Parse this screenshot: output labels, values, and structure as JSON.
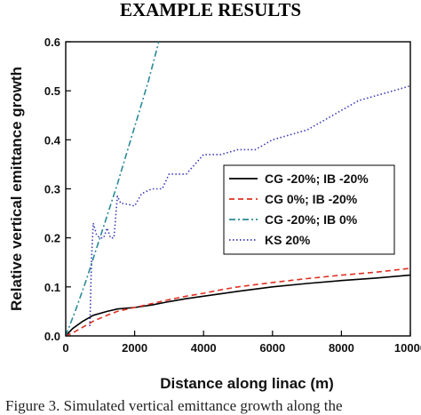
{
  "heading": "EXAMPLE RESULTS",
  "caption": "Figure 3. Simulated vertical emittance growth along the",
  "chart_data": {
    "type": "line",
    "title": "",
    "xlabel": "Distance along linac (m)",
    "ylabel": "Relative vertical emittance growth",
    "xlim": [
      0,
      10000
    ],
    "ylim": [
      0,
      0.6
    ],
    "xticks": [
      0,
      2000,
      4000,
      6000,
      8000,
      10000
    ],
    "yticks": [
      0.0,
      0.1,
      0.2,
      0.3,
      0.4,
      0.5,
      0.6
    ],
    "xtick_labels": [
      "0",
      "2000",
      "4000",
      "6000",
      "8000",
      "10000"
    ],
    "ytick_labels": [
      "0.0",
      "0.1",
      "0.2",
      "0.3",
      "0.4",
      "0.5",
      "0.6"
    ],
    "grid": false,
    "legend_position": "middle-right",
    "series": [
      {
        "name": "CG -20%; IB -20%",
        "color": "#000000",
        "dash": "solid",
        "x": [
          0,
          200,
          500,
          800,
          1200,
          1500,
          2000,
          2500,
          3000,
          3500,
          4000,
          4500,
          5000,
          6000,
          7000,
          8000,
          9000,
          10000
        ],
        "y": [
          0,
          0.015,
          0.03,
          0.042,
          0.05,
          0.055,
          0.058,
          0.063,
          0.07,
          0.076,
          0.081,
          0.086,
          0.091,
          0.1,
          0.107,
          0.113,
          0.118,
          0.124
        ]
      },
      {
        "name": "CG 0%; IB -20%",
        "color": "#e03020",
        "dash": "dashed",
        "x": [
          0,
          200,
          500,
          800,
          1200,
          1500,
          2000,
          2500,
          3000,
          3500,
          4000,
          4500,
          5000,
          6000,
          7000,
          8000,
          9000,
          10000
        ],
        "y": [
          0,
          0.006,
          0.018,
          0.03,
          0.042,
          0.05,
          0.058,
          0.066,
          0.074,
          0.081,
          0.087,
          0.094,
          0.1,
          0.109,
          0.117,
          0.124,
          0.13,
          0.138
        ]
      },
      {
        "name": "CG -20%; IB 0%",
        "color": "#2a8a96",
        "dash": "dashdot",
        "x": [
          0,
          300,
          600,
          900,
          1200,
          1500,
          1800,
          2100,
          2400,
          2700
        ],
        "y": [
          0,
          0.055,
          0.115,
          0.18,
          0.245,
          0.31,
          0.38,
          0.45,
          0.52,
          0.6
        ]
      },
      {
        "name": "KS 20%",
        "color": "#3a3ab8",
        "dash": "dotted",
        "x": [
          700,
          750,
          800,
          900,
          1000,
          1100,
          1200,
          1300,
          1400,
          1500,
          1600,
          1700,
          2000,
          2200,
          2500,
          2800,
          3000,
          3500,
          4000,
          4500,
          5000,
          5500,
          6000,
          6500,
          7000,
          7500,
          8000,
          8500,
          9000,
          9500,
          10000
        ],
        "y": [
          0.02,
          0.16,
          0.23,
          0.205,
          0.2,
          0.2,
          0.22,
          0.2,
          0.2,
          0.285,
          0.27,
          0.27,
          0.265,
          0.29,
          0.3,
          0.3,
          0.33,
          0.33,
          0.37,
          0.37,
          0.38,
          0.38,
          0.4,
          0.41,
          0.42,
          0.44,
          0.46,
          0.48,
          0.49,
          0.5,
          0.51
        ]
      }
    ]
  }
}
